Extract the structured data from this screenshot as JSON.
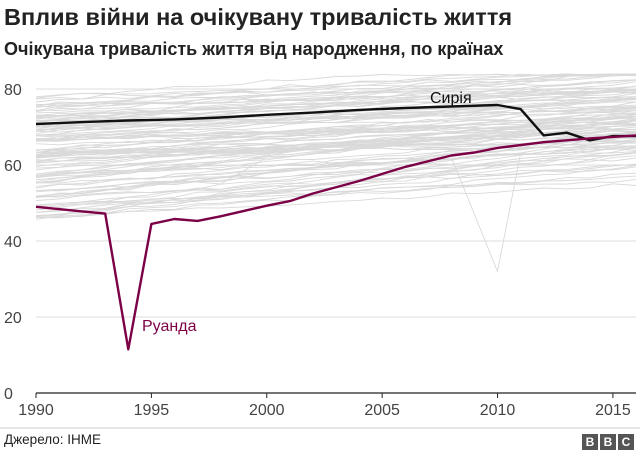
{
  "title": "Вплив війни на очікувану тривалість життя",
  "subtitle": "Очікувана тривалість життя від народження, по країнах",
  "source": "Джерело: IHME",
  "logo": [
    "B",
    "B",
    "C"
  ],
  "colors": {
    "background_lines": "#d9d9d9",
    "syria": "#111111",
    "rwanda": "#7b0046",
    "axis": "#222222",
    "grid": "#dddddd"
  },
  "chart_data": {
    "type": "line",
    "title": "Вплив війни на очікувану тривалість життя",
    "subtitle": "Очікувана тривалість життя від народження, по країнах",
    "xlim": [
      1990,
      2016
    ],
    "ylim": [
      0,
      85
    ],
    "x_ticks": [
      1990,
      1995,
      2000,
      2005,
      2010,
      2015
    ],
    "y_ticks": [
      0,
      20,
      40,
      60,
      80
    ],
    "grid": "horizontal",
    "background": "many grey lines, one per other country",
    "series": [
      {
        "name": "Сирія",
        "color": "#111111",
        "x": [
          1990,
          1992,
          1994,
          1996,
          1998,
          2000,
          2002,
          2004,
          2006,
          2008,
          2010,
          2011,
          2012,
          2013,
          2014,
          2015,
          2016
        ],
        "values": [
          70.8,
          71.3,
          71.7,
          72.0,
          72.5,
          73.2,
          73.8,
          74.5,
          75.0,
          75.4,
          75.8,
          74.7,
          67.8,
          68.5,
          66.5,
          67.6,
          67.6
        ]
      },
      {
        "name": "Руанда",
        "color": "#7b0046",
        "x": [
          1990,
          1992,
          1993,
          1994,
          1995,
          1996,
          1997,
          1998,
          2000,
          2001,
          2002,
          2004,
          2006,
          2008,
          2009,
          2010,
          2012,
          2014,
          2016
        ],
        "values": [
          49,
          47.8,
          47.2,
          11.5,
          44.5,
          45.8,
          45.3,
          46.5,
          49.3,
          50.5,
          52.5,
          55.8,
          59.5,
          62.5,
          63.3,
          64.5,
          66.0,
          67.0,
          67.8
        ]
      }
    ]
  }
}
